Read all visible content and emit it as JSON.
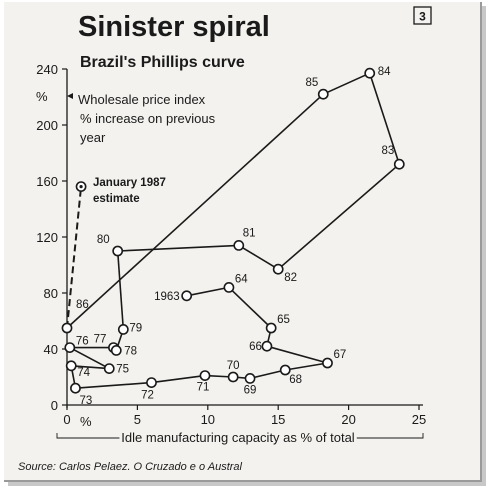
{
  "panel_number": "3",
  "title": "Sinister spiral",
  "subtitle": "Brazil's Phillips curve",
  "y_unit": "%",
  "x_unit": "%",
  "y_annotation": [
    "Wholesale price index",
    "% increase on previous",
    "year"
  ],
  "estimate_label": [
    "January 1987",
    "estimate"
  ],
  "x_axis_label": "Idle manufacturing capacity as % of total",
  "source": "Source: Carlos Pelaez. O Cruzado e o Austral",
  "chart_data": {
    "type": "line",
    "title": "Brazil's Phillips curve",
    "xlabel": "Idle manufacturing capacity as % of total",
    "ylabel": "Wholesale price index % increase on previous year",
    "xlim": [
      0,
      25
    ],
    "ylim": [
      0,
      240
    ],
    "x_ticks": [
      0,
      5,
      10,
      15,
      20,
      25
    ],
    "y_ticks": [
      0,
      40,
      80,
      120,
      160,
      200,
      240
    ],
    "grid": false,
    "series": [
      {
        "points": [
          {
            "label": "1963",
            "x": 8.5,
            "y": 78
          },
          {
            "label": "64",
            "x": 11.5,
            "y": 84
          },
          {
            "label": "65",
            "x": 14.5,
            "y": 55
          },
          {
            "label": "66",
            "x": 14.2,
            "y": 42
          },
          {
            "label": "67",
            "x": 18.5,
            "y": 30
          },
          {
            "label": "68",
            "x": 15.5,
            "y": 25
          },
          {
            "label": "69",
            "x": 13,
            "y": 19
          },
          {
            "label": "70",
            "x": 11.8,
            "y": 20
          },
          {
            "label": "71",
            "x": 9.8,
            "y": 21
          },
          {
            "label": "72",
            "x": 6,
            "y": 16
          },
          {
            "label": "73",
            "x": 0.6,
            "y": 12
          },
          {
            "label": "74",
            "x": 0.3,
            "y": 28
          },
          {
            "label": "75",
            "x": 3,
            "y": 26
          },
          {
            "label": "76",
            "x": 0.2,
            "y": 41
          },
          {
            "label": "77",
            "x": 3.3,
            "y": 41
          },
          {
            "label": "78",
            "x": 3.5,
            "y": 39
          },
          {
            "label": "79",
            "x": 4,
            "y": 54
          },
          {
            "label": "80",
            "x": 3.6,
            "y": 110
          },
          {
            "label": "81",
            "x": 12.2,
            "y": 114
          },
          {
            "label": "82",
            "x": 15,
            "y": 97
          },
          {
            "label": "83",
            "x": 23.6,
            "y": 172
          },
          {
            "label": "84",
            "x": 21.5,
            "y": 237
          },
          {
            "label": "85",
            "x": 18.2,
            "y": 222
          },
          {
            "label": "86",
            "x": 0,
            "y": 55
          }
        ]
      }
    ],
    "estimate": {
      "x_from": 0,
      "y_from": 55,
      "x": 1,
      "y": 156
    }
  }
}
